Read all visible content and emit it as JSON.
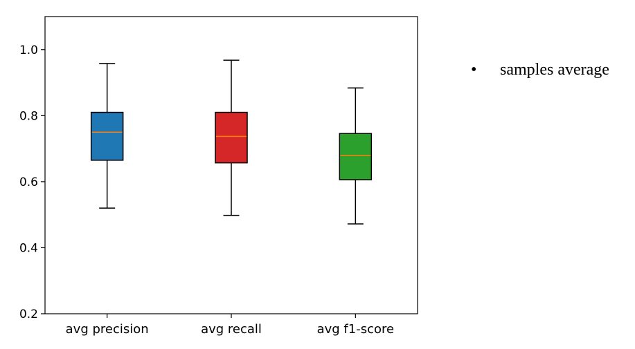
{
  "chart_data": {
    "type": "box",
    "categories": [
      "avg precision",
      "avg recall",
      "avg f1-score"
    ],
    "series": [
      {
        "category": "avg precision",
        "whisker_low": 0.52,
        "q1": 0.665,
        "median": 0.75,
        "q3": 0.81,
        "whisker_high": 0.958,
        "color": "#1f77b4"
      },
      {
        "category": "avg recall",
        "whisker_low": 0.498,
        "q1": 0.657,
        "median": 0.737,
        "q3": 0.81,
        "whisker_high": 0.968,
        "color": "#d62728"
      },
      {
        "category": "avg f1-score",
        "whisker_low": 0.472,
        "q1": 0.606,
        "median": 0.679,
        "q3": 0.746,
        "whisker_high": 0.884,
        "color": "#2ca02c"
      }
    ],
    "yticks": [
      0.2,
      0.4,
      0.6,
      0.8,
      1.0
    ],
    "ytick_labels": [
      "0.2",
      "0.4",
      "0.6",
      "0.8",
      "1.0"
    ],
    "ylim": [
      0.2,
      1.1
    ],
    "median_color": "#ff7f0e",
    "grid": false
  },
  "legend_note": {
    "bullet": "•",
    "text": "samples average"
  }
}
